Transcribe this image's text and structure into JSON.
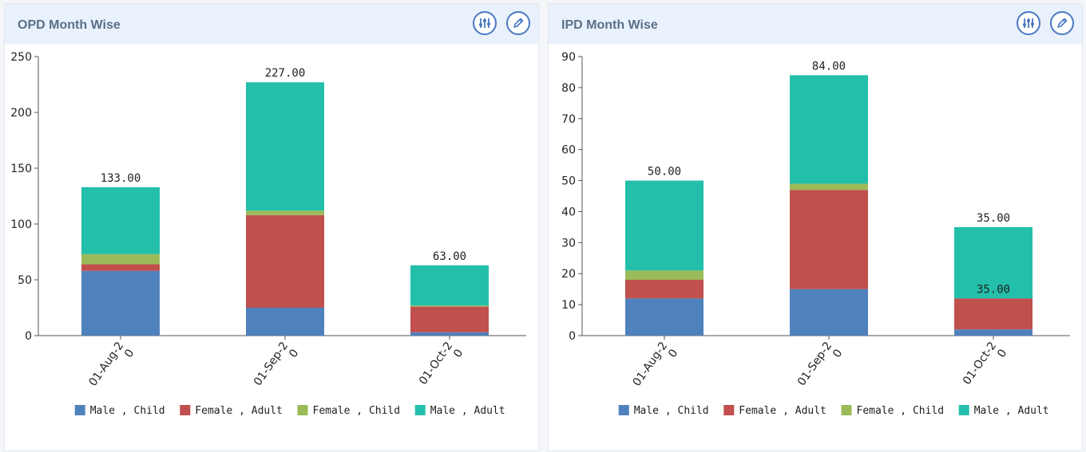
{
  "panels": [
    {
      "title": "OPD Month Wise"
    },
    {
      "title": "IPD Month Wise"
    }
  ],
  "chart_data": [
    {
      "type": "bar",
      "stacked": true,
      "title": "OPD Month Wise",
      "categories": [
        "01-Aug-2\n0",
        "01-Sep-2\n0",
        "01-Oct-2\n0"
      ],
      "series": [
        {
          "name": "Male , Child",
          "color": "#4f81bd",
          "values": [
            58,
            25,
            3
          ]
        },
        {
          "name": "Female , Adult",
          "color": "#c0504d",
          "values": [
            6,
            83,
            23
          ]
        },
        {
          "name": "Female , Child",
          "color": "#9bbb59",
          "values": [
            9,
            4,
            1
          ]
        },
        {
          "name": "Male , Adult",
          "color": "#23bfaa",
          "values": [
            60,
            115,
            36
          ]
        }
      ],
      "totals": [
        "133.00",
        "227.00",
        "63.00"
      ],
      "extra_labels": [],
      "ylim": [
        0,
        250
      ],
      "yticks": [
        0,
        50,
        100,
        150,
        200,
        250
      ],
      "legend_position": "bottom"
    },
    {
      "type": "bar",
      "stacked": true,
      "title": "IPD Month Wise",
      "categories": [
        "01-Aug-2\n0",
        "01-Sep-2\n0",
        "01-Oct-2\n0"
      ],
      "series": [
        {
          "name": "Male , Child",
          "color": "#4f81bd",
          "values": [
            12,
            15,
            2
          ]
        },
        {
          "name": "Female , Adult",
          "color": "#c0504d",
          "values": [
            6,
            32,
            10
          ]
        },
        {
          "name": "Female , Child",
          "color": "#9bbb59",
          "values": [
            3,
            2,
            0
          ]
        },
        {
          "name": "Male , Adult",
          "color": "#23bfaa",
          "values": [
            29,
            35,
            23
          ]
        }
      ],
      "totals": [
        "50.00",
        "84.00",
        "35.00"
      ],
      "extra_labels": [
        {
          "category": 2,
          "series": 1,
          "text": "35.00"
        }
      ],
      "ylim": [
        0,
        90
      ],
      "yticks": [
        0,
        10,
        20,
        30,
        40,
        50,
        60,
        70,
        80,
        90
      ],
      "legend_position": "bottom"
    }
  ]
}
